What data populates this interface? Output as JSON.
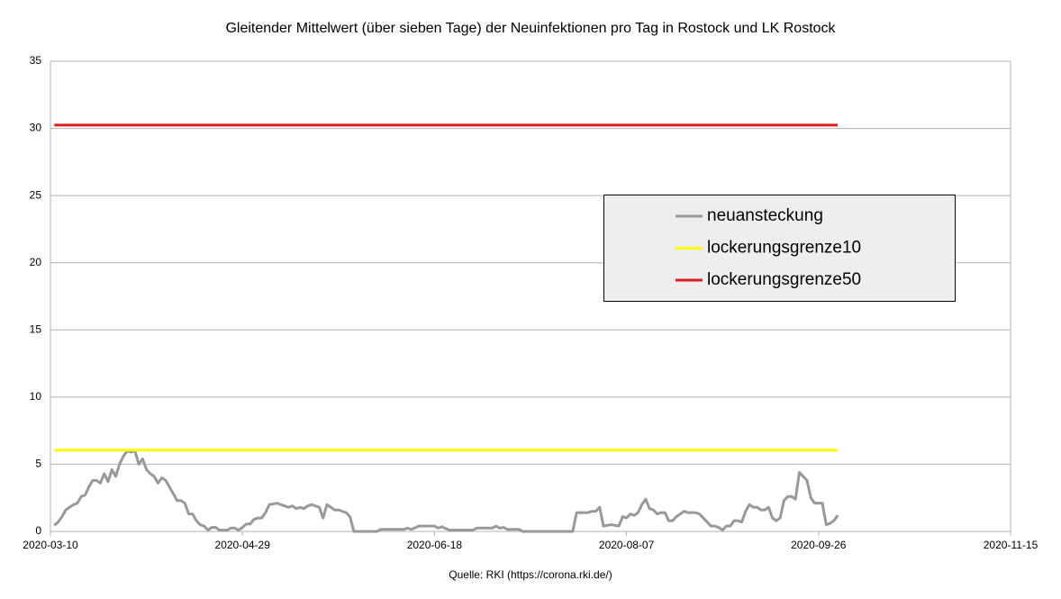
{
  "chart_data": {
    "type": "line",
    "title": "Gleitender Mittelwert (über sieben Tage) der Neuinfektionen pro Tag in Rostock und LK Rostock",
    "source": "Quelle: RKI (https://corona.rki.de/)",
    "xlim": [
      "2020-03-10",
      "2020-11-15"
    ],
    "xticks": [
      "2020-03-10",
      "2020-04-29",
      "2020-06-18",
      "2020-08-07",
      "2020-09-26",
      "2020-11-15"
    ],
    "ylim": [
      0,
      35
    ],
    "yticks": [
      0,
      5,
      10,
      15,
      20,
      25,
      30,
      35
    ],
    "grid": true,
    "legend": "right",
    "series": [
      {
        "name": "neuansteckung",
        "color": "#999999",
        "x": [
          "2020-03-11",
          "2020-03-12",
          "2020-03-13",
          "2020-03-14",
          "2020-03-15",
          "2020-03-16",
          "2020-03-17",
          "2020-03-18",
          "2020-03-19",
          "2020-03-20",
          "2020-03-21",
          "2020-03-22",
          "2020-03-23",
          "2020-03-24",
          "2020-03-25",
          "2020-03-26",
          "2020-03-27",
          "2020-03-28",
          "2020-03-29",
          "2020-03-30",
          "2020-03-31",
          "2020-04-01",
          "2020-04-02",
          "2020-04-03",
          "2020-04-04",
          "2020-04-05",
          "2020-04-06",
          "2020-04-07",
          "2020-04-08",
          "2020-04-09",
          "2020-04-10",
          "2020-04-11",
          "2020-04-12",
          "2020-04-13",
          "2020-04-14",
          "2020-04-15",
          "2020-04-16",
          "2020-04-17",
          "2020-04-18",
          "2020-04-19",
          "2020-04-20",
          "2020-04-21",
          "2020-04-22",
          "2020-04-23",
          "2020-04-24",
          "2020-04-25",
          "2020-04-26",
          "2020-04-27",
          "2020-04-28",
          "2020-04-29",
          "2020-04-30",
          "2020-05-01",
          "2020-05-02",
          "2020-05-03",
          "2020-05-04",
          "2020-05-05",
          "2020-05-06",
          "2020-05-08",
          "2020-05-10",
          "2020-05-11",
          "2020-05-12",
          "2020-05-13",
          "2020-05-14",
          "2020-05-15",
          "2020-05-16",
          "2020-05-17",
          "2020-05-18",
          "2020-05-19",
          "2020-05-20",
          "2020-05-21",
          "2020-05-22",
          "2020-05-23",
          "2020-05-24",
          "2020-05-25",
          "2020-05-26",
          "2020-05-27",
          "2020-05-28",
          "2020-06-03",
          "2020-06-04",
          "2020-06-10",
          "2020-06-11",
          "2020-06-12",
          "2020-06-14",
          "2020-06-18",
          "2020-06-19",
          "2020-06-20",
          "2020-06-21",
          "2020-06-22",
          "2020-06-28",
          "2020-06-29",
          "2020-07-03",
          "2020-07-04",
          "2020-07-05",
          "2020-07-06",
          "2020-07-07",
          "2020-07-10",
          "2020-07-11",
          "2020-07-24",
          "2020-07-25",
          "2020-07-28",
          "2020-07-29",
          "2020-07-30",
          "2020-07-31",
          "2020-08-01",
          "2020-08-03",
          "2020-08-05",
          "2020-08-06",
          "2020-08-07",
          "2020-08-08",
          "2020-08-09",
          "2020-08-10",
          "2020-08-11",
          "2020-08-12",
          "2020-08-13",
          "2020-08-14",
          "2020-08-15",
          "2020-08-16",
          "2020-08-17",
          "2020-08-18",
          "2020-08-19",
          "2020-08-20",
          "2020-08-22",
          "2020-08-23",
          "2020-08-25",
          "2020-08-26",
          "2020-08-27",
          "2020-08-28",
          "2020-08-29",
          "2020-08-30",
          "2020-08-31",
          "2020-09-01",
          "2020-09-02",
          "2020-09-03",
          "2020-09-04",
          "2020-09-05",
          "2020-09-06",
          "2020-09-07",
          "2020-09-08",
          "2020-09-09",
          "2020-09-10",
          "2020-09-11",
          "2020-09-12",
          "2020-09-13",
          "2020-09-14",
          "2020-09-15",
          "2020-09-16",
          "2020-09-17",
          "2020-09-18",
          "2020-09-19",
          "2020-09-20",
          "2020-09-21",
          "2020-09-22",
          "2020-09-23",
          "2020-09-24",
          "2020-09-25",
          "2020-09-26",
          "2020-09-27",
          "2020-09-28",
          "2020-09-29",
          "2020-09-30",
          "2020-10-01"
        ],
        "values": [
          0.45,
          0.7,
          1.1,
          1.6,
          1.8,
          2.0,
          2.1,
          2.6,
          2.7,
          3.3,
          3.8,
          3.8,
          3.6,
          4.3,
          3.7,
          4.6,
          4.1,
          5.0,
          5.6,
          6.0,
          5.9,
          6.0,
          5.0,
          5.4,
          4.6,
          4.3,
          4.1,
          3.6,
          4.0,
          3.8,
          3.3,
          2.8,
          2.3,
          2.3,
          2.1,
          1.3,
          1.3,
          0.8,
          0.5,
          0.4,
          0.1,
          0.3,
          0.3,
          0.1,
          0.1,
          0.1,
          0.25,
          0.25,
          0.1,
          0.3,
          0.55,
          0.55,
          0.9,
          1.0,
          1.0,
          1.4,
          2.0,
          2.1,
          1.9,
          1.8,
          1.9,
          1.7,
          1.8,
          1.7,
          1.9,
          2.0,
          1.9,
          1.8,
          1.0,
          2.0,
          1.8,
          1.6,
          1.6,
          1.5,
          1.4,
          1.1,
          0,
          0,
          0.15,
          0.15,
          0.25,
          0.15,
          0.4,
          0.4,
          0.25,
          0.35,
          0.2,
          0.1,
          0.1,
          0.25,
          0.25,
          0.4,
          0.25,
          0.3,
          0.15,
          0.15,
          0,
          0,
          1.4,
          1.4,
          1.5,
          1.5,
          1.8,
          0.4,
          0.5,
          0.4,
          1.1,
          1.0,
          1.3,
          1.2,
          1.4,
          2.0,
          2.4,
          1.7,
          1.6,
          1.3,
          1.4,
          1.4,
          0.8,
          0.8,
          1.1,
          1.5,
          1.4,
          1.4,
          1.3,
          1.0,
          0.7,
          0.4,
          0.4,
          0.3,
          0.1,
          0.4,
          0.4,
          0.8,
          0.8,
          0.7,
          1.5,
          2.0,
          1.8,
          1.8,
          1.6,
          1.6,
          1.8,
          1.0,
          0.8,
          1.0,
          2.3,
          2.6,
          2.6,
          2.4,
          4.4,
          4.1,
          3.8,
          2.5,
          2.1,
          2.1,
          2.1,
          0.5,
          0.6,
          0.8,
          1.2
        ]
      },
      {
        "name": "lockerungsgrenze10",
        "color": "#ffff00",
        "x": [
          "2020-03-11",
          "2020-10-01"
        ],
        "values": [
          6.05,
          6.05
        ]
      },
      {
        "name": "lockerungsgrenze50",
        "color": "#dd1c1c",
        "x": [
          "2020-03-11",
          "2020-10-01"
        ],
        "values": [
          30.25,
          30.25
        ]
      }
    ]
  }
}
